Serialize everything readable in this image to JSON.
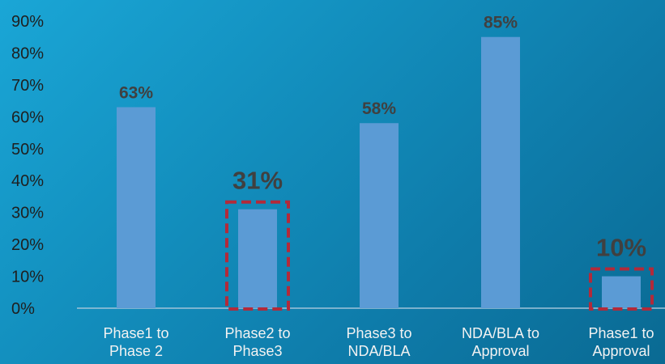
{
  "chart_data": {
    "type": "bar",
    "categories": [
      [
        "Phase1 to",
        "Phase 2"
      ],
      [
        "Phase2 to",
        "Phase3"
      ],
      [
        "Phase3 to",
        "NDA/BLA"
      ],
      [
        "NDA/BLA to",
        "Approval"
      ],
      [
        "Phase1 to",
        "Approval"
      ]
    ],
    "values": [
      63,
      31,
      58,
      85,
      10
    ],
    "value_labels": [
      "63%",
      "31%",
      "58%",
      "85%",
      "10%"
    ],
    "highlighted": [
      false,
      true,
      false,
      false,
      true
    ],
    "yticks": [
      "0%",
      "10%",
      "20%",
      "30%",
      "40%",
      "50%",
      "60%",
      "70%",
      "80%",
      "90%"
    ],
    "ylim": [
      0,
      90
    ],
    "grid": false,
    "colors": {
      "bar": "#5b9bd5",
      "highlight_box": "#b22a3a",
      "value_label": "#404040",
      "axis_text": "#1f1f1f",
      "category_text": "#f2f2f2",
      "axis_line": "#9fc3d9"
    }
  }
}
